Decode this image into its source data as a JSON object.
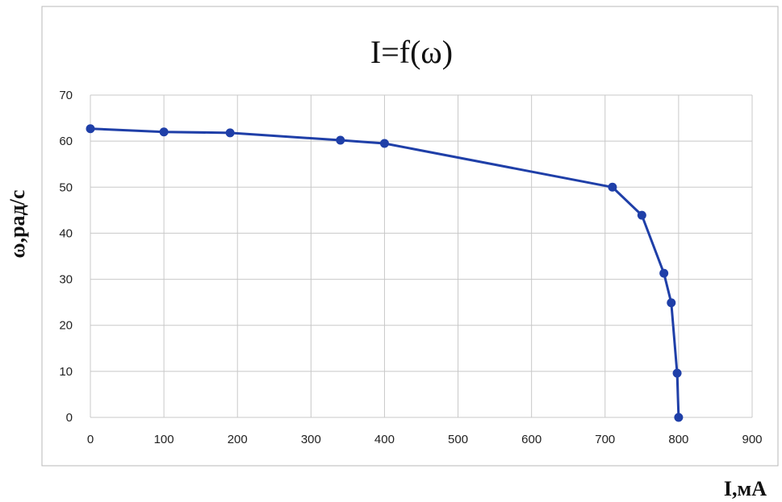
{
  "chart_data": {
    "type": "line",
    "title": "I=f(ω)",
    "xlabel": "I,мА",
    "ylabel": "ω,рад/с",
    "xlim": [
      0,
      900
    ],
    "ylim": [
      0,
      70
    ],
    "xticks": [
      "0",
      "100",
      "200",
      "300",
      "400",
      "500",
      "600",
      "700",
      "800",
      "900"
    ],
    "yticks": [
      "0",
      "10",
      "20",
      "30",
      "40",
      "50",
      "60",
      "70"
    ],
    "grid": true,
    "series": [
      {
        "color": "#1f3fa8",
        "x": [
          0,
          100,
          190,
          340,
          400,
          710,
          750,
          780,
          790,
          798,
          800
        ],
        "y": [
          62.7,
          62.0,
          61.8,
          60.2,
          59.5,
          50.0,
          43.9,
          31.3,
          24.9,
          9.6,
          0
        ]
      }
    ]
  }
}
